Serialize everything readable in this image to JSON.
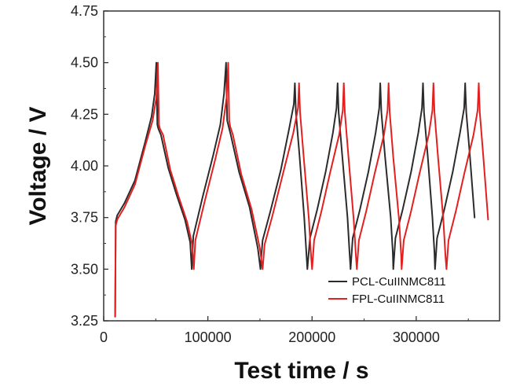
{
  "chart_data": {
    "type": "line",
    "title": "",
    "xlabel": "Test time / s",
    "ylabel": "Voltage / V",
    "xlim": [
      0,
      380000
    ],
    "ylim": [
      3.25,
      4.75
    ],
    "x_ticks": [
      0,
      100000,
      200000,
      300000
    ],
    "x_tick_labels": [
      "0",
      "100000",
      "200000",
      "300000"
    ],
    "y_ticks": [
      3.25,
      3.5,
      3.75,
      4.0,
      4.25,
      4.5,
      4.75
    ],
    "y_tick_labels": [
      "3.25",
      "3.50",
      "3.75",
      "4.00",
      "4.25",
      "4.50",
      "4.75"
    ],
    "grid": false,
    "legend_position": "bottom-right",
    "series": [
      {
        "name": "PCL-CuIINMC811",
        "color": "#2b2b2b",
        "x": [
          11000,
          11500,
          13000,
          20000,
          30000,
          40000,
          46000,
          49000,
          50500,
          51500,
          52500,
          55000,
          62000,
          70000,
          78000,
          83000,
          84500,
          86000,
          95000,
          105000,
          112000,
          115500,
          117500,
          118500,
          119500,
          122000,
          130000,
          140000,
          148000,
          150500,
          151500,
          152500,
          160000,
          170000,
          178000,
          182500,
          183500,
          184500,
          188000,
          192500,
          194500,
          195500,
          198000,
          205000,
          213000,
          220000,
          223500,
          224500,
          225500,
          229000,
          234000,
          236000,
          237000,
          239000,
          246000,
          254000,
          261000,
          264500,
          265500,
          266500,
          270000,
          275500,
          277500,
          278000,
          280000,
          287000,
          295000,
          302000,
          305500,
          306500,
          307500,
          311000,
          315500,
          317500,
          318000,
          320000,
          327000,
          335000,
          342000,
          346000,
          347000,
          348000,
          351500,
          356000
        ],
        "y": [
          3.27,
          3.73,
          3.76,
          3.82,
          3.93,
          4.12,
          4.24,
          4.35,
          4.5,
          4.2,
          4.18,
          4.15,
          3.99,
          3.86,
          3.74,
          3.63,
          3.5,
          3.66,
          3.85,
          4.05,
          4.2,
          4.35,
          4.5,
          4.22,
          4.2,
          4.15,
          3.97,
          3.8,
          3.6,
          3.5,
          3.57,
          3.64,
          3.78,
          3.98,
          4.18,
          4.3,
          4.4,
          4.26,
          4.05,
          3.75,
          3.58,
          3.5,
          3.65,
          3.79,
          3.97,
          4.16,
          4.28,
          4.4,
          4.26,
          4.05,
          3.75,
          3.58,
          3.5,
          3.65,
          3.79,
          3.97,
          4.16,
          4.28,
          4.4,
          4.26,
          4.05,
          3.75,
          3.58,
          3.5,
          3.65,
          3.79,
          3.97,
          4.16,
          4.28,
          4.4,
          4.26,
          4.05,
          3.75,
          3.58,
          3.5,
          3.65,
          3.79,
          3.97,
          4.16,
          4.28,
          4.4,
          4.26,
          4.05,
          3.75
        ]
      },
      {
        "name": "FPL-CuIINMC811",
        "color": "#e41f1f",
        "x": [
          11000,
          11500,
          13000,
          20000,
          30000,
          40000,
          47000,
          50500,
          52000,
          53000,
          54000,
          57000,
          64000,
          72000,
          80000,
          85000,
          86500,
          88000,
          97000,
          107000,
          114000,
          118000,
          119500,
          120500,
          121500,
          124000,
          132000,
          142000,
          150000,
          152500,
          153500,
          154500,
          162000,
          172000,
          182000,
          186500,
          187500,
          188500,
          192000,
          197000,
          199000,
          200000,
          202000,
          209000,
          217000,
          226000,
          229500,
          230500,
          231500,
          235000,
          240000,
          242000,
          243000,
          245000,
          252000,
          260000,
          269000,
          272500,
          273500,
          274500,
          278000,
          283500,
          285500,
          286000,
          288000,
          295000,
          303000,
          312000,
          315500,
          316500,
          317500,
          321000,
          326000,
          328000,
          329000,
          331000,
          338000,
          346000,
          355000,
          359000,
          360000,
          361000,
          364500,
          369000
        ],
        "y": [
          3.27,
          3.71,
          3.74,
          3.8,
          3.91,
          4.1,
          4.22,
          4.33,
          4.5,
          4.2,
          4.18,
          4.15,
          3.98,
          3.85,
          3.73,
          3.62,
          3.5,
          3.64,
          3.83,
          4.03,
          4.18,
          4.33,
          4.5,
          4.22,
          4.19,
          4.15,
          3.96,
          3.79,
          3.6,
          3.5,
          3.56,
          3.62,
          3.76,
          3.96,
          4.16,
          4.28,
          4.4,
          4.26,
          4.04,
          3.74,
          3.57,
          3.5,
          3.64,
          3.78,
          3.96,
          4.15,
          4.27,
          4.4,
          4.26,
          4.04,
          3.74,
          3.57,
          3.5,
          3.64,
          3.78,
          3.96,
          4.15,
          4.27,
          4.4,
          4.26,
          4.04,
          3.74,
          3.57,
          3.5,
          3.64,
          3.78,
          3.96,
          4.15,
          4.27,
          4.4,
          4.26,
          4.04,
          3.74,
          3.57,
          3.5,
          3.64,
          3.78,
          3.96,
          4.15,
          4.27,
          4.4,
          4.26,
          4.04,
          3.74
        ]
      }
    ]
  }
}
